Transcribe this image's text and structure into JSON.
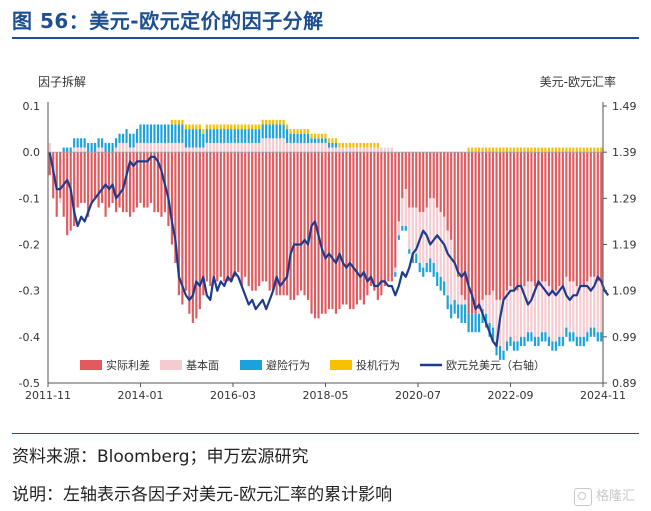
{
  "figure": {
    "title": "图 56：美元-欧元定价的因子分解",
    "source": "资料来源：Bloomberg；申万宏源研究",
    "note": "说明：左轴表示各因子对美元-欧元汇率的累计影响",
    "watermark": "格隆汇"
  },
  "chart_data": {
    "type": "bar",
    "stacked": true,
    "left_axis": {
      "label": "因子拆解",
      "ylim": [
        -0.5,
        0.1
      ],
      "ticks": [
        "0.1",
        "0.0",
        "-0.1",
        "-0.2",
        "-0.3",
        "-0.4",
        "-0.5"
      ]
    },
    "right_axis": {
      "label": "美元-欧元汇率",
      "ylim": [
        0.89,
        1.49
      ],
      "ticks": [
        "1.49",
        "1.39",
        "1.29",
        "1.19",
        "1.09",
        "0.99",
        "0.89"
      ]
    },
    "x_tick_labels": [
      "2011-11",
      "2014-01",
      "2016-03",
      "2018-05",
      "2020-07",
      "2022-09",
      "2024-11"
    ],
    "x_range": [
      "2011-11",
      "2024-12"
    ],
    "legend_position": "bottom-inside",
    "colors": {
      "rate": "#e05a5e",
      "fundamental": "#f6cbd0",
      "risk": "#1aa2dc",
      "spec": "#f6c100",
      "fx": "#1e3c8c"
    },
    "series": [
      {
        "name": "实际利差",
        "kind": "bar",
        "color": "#e05a5e",
        "values": [
          -0.05,
          -0.1,
          -0.14,
          -0.1,
          -0.14,
          -0.18,
          -0.17,
          -0.16,
          -0.12,
          -0.11,
          -0.11,
          -0.14,
          -0.11,
          -0.1,
          -0.12,
          -0.11,
          -0.14,
          -0.12,
          -0.11,
          -0.13,
          -0.12,
          -0.13,
          -0.13,
          -0.14,
          -0.13,
          -0.12,
          -0.11,
          -0.12,
          -0.12,
          -0.11,
          -0.13,
          -0.13,
          -0.14,
          -0.13,
          -0.16,
          -0.2,
          -0.24,
          -0.31,
          -0.33,
          -0.3,
          -0.35,
          -0.37,
          -0.36,
          -0.34,
          -0.31,
          -0.28,
          -0.29,
          -0.28,
          -0.28,
          -0.27,
          -0.28,
          -0.28,
          -0.28,
          -0.27,
          -0.26,
          -0.29,
          -0.27,
          -0.29,
          -0.3,
          -0.3,
          -0.29,
          -0.28,
          -0.28,
          -0.3,
          -0.3,
          -0.31,
          -0.31,
          -0.31,
          -0.31,
          -0.32,
          -0.32,
          -0.31,
          -0.3,
          -0.31,
          -0.32,
          -0.35,
          -0.36,
          -0.36,
          -0.35,
          -0.35,
          -0.34,
          -0.34,
          -0.35,
          -0.34,
          -0.33,
          -0.33,
          -0.34,
          -0.34,
          -0.33,
          -0.32,
          -0.33,
          -0.31,
          -0.29,
          -0.3,
          -0.32,
          -0.31,
          -0.29,
          -0.28,
          -0.28,
          -0.25,
          -0.15,
          -0.1,
          -0.08,
          -0.12,
          -0.12,
          -0.12,
          -0.13,
          -0.13,
          -0.12,
          -0.1,
          -0.1,
          -0.12,
          -0.13,
          -0.14,
          -0.17,
          -0.19,
          -0.24,
          -0.27,
          -0.31,
          -0.32,
          -0.35,
          -0.35,
          -0.35,
          -0.34,
          -0.32,
          -0.31,
          -0.31,
          -0.3,
          -0.32,
          -0.32,
          -0.32,
          -0.3,
          -0.29,
          -0.3,
          -0.3,
          -0.29,
          -0.29,
          -0.28,
          -0.28,
          -0.29,
          -0.29,
          -0.28,
          -0.28,
          -0.29,
          -0.3,
          -0.3,
          -0.29,
          -0.29,
          -0.27,
          -0.28,
          -0.28,
          -0.29,
          -0.29,
          -0.29,
          -0.28,
          -0.27,
          -0.27,
          -0.28,
          -0.28
        ]
      },
      {
        "name": "基本面",
        "kind": "bar",
        "color": "#f6cbd0",
        "values": [
          0.02,
          0.0,
          0.0,
          -0.01,
          0.0,
          0.0,
          0.0,
          0.01,
          0.01,
          0.01,
          0.01,
          0.0,
          0.0,
          0.0,
          0.01,
          0.01,
          0.0,
          0.0,
          0.0,
          0.01,
          0.02,
          0.02,
          0.02,
          0.01,
          0.01,
          0.02,
          0.02,
          0.02,
          0.02,
          0.02,
          0.02,
          0.02,
          0.02,
          0.02,
          0.02,
          0.02,
          0.02,
          0.02,
          0.02,
          0.01,
          0.01,
          0.01,
          0.01,
          0.01,
          0.01,
          0.02,
          0.02,
          0.02,
          0.02,
          0.02,
          0.02,
          0.02,
          0.02,
          0.02,
          0.02,
          0.02,
          0.02,
          0.02,
          0.02,
          0.02,
          0.02,
          0.03,
          0.03,
          0.03,
          0.03,
          0.03,
          0.03,
          0.03,
          0.02,
          0.02,
          0.02,
          0.02,
          0.02,
          0.02,
          0.02,
          0.02,
          0.02,
          0.02,
          0.02,
          0.02,
          0.01,
          0.01,
          0.01,
          0.01,
          0.01,
          0.01,
          0.01,
          0.01,
          0.01,
          0.01,
          0.01,
          0.01,
          0.01,
          0.01,
          0.01,
          0.01,
          0.01,
          0.01,
          0.01,
          -0.01,
          -0.03,
          -0.06,
          -0.08,
          -0.09,
          -0.1,
          -0.1,
          -0.11,
          -0.12,
          -0.12,
          -0.13,
          -0.14,
          -0.14,
          -0.14,
          -0.14,
          -0.14,
          -0.14,
          -0.08,
          -0.06,
          -0.02,
          -0.01,
          0.0,
          0.0,
          0.0,
          -0.01,
          -0.02,
          -0.04,
          -0.06,
          -0.08,
          -0.09,
          -0.1,
          -0.11,
          -0.11,
          -0.11,
          -0.11,
          -0.11,
          -0.11,
          -0.11,
          -0.11,
          -0.11,
          -0.11,
          -0.11,
          -0.11,
          -0.11,
          -0.11,
          -0.11,
          -0.11,
          -0.11,
          -0.11,
          -0.11,
          -0.11,
          -0.11,
          -0.11,
          -0.11,
          -0.11,
          -0.11,
          -0.11,
          -0.11,
          -0.11,
          -0.11
        ]
      },
      {
        "name": "避险行为",
        "kind": "bar",
        "color": "#1aa2dc",
        "values": [
          0.0,
          0.0,
          0.0,
          0.0,
          0.01,
          0.01,
          0.01,
          0.02,
          0.02,
          0.02,
          0.02,
          0.02,
          0.02,
          0.02,
          0.02,
          0.02,
          0.02,
          0.02,
          0.02,
          0.02,
          0.02,
          0.02,
          0.03,
          0.03,
          0.03,
          0.03,
          0.04,
          0.04,
          0.04,
          0.04,
          0.04,
          0.04,
          0.04,
          0.04,
          0.04,
          0.04,
          0.04,
          0.04,
          0.04,
          0.04,
          0.04,
          0.04,
          0.04,
          0.04,
          0.03,
          0.03,
          0.03,
          0.03,
          0.03,
          0.03,
          0.03,
          0.03,
          0.03,
          0.03,
          0.03,
          0.03,
          0.03,
          0.03,
          0.03,
          0.03,
          0.03,
          0.03,
          0.03,
          0.03,
          0.03,
          0.03,
          0.03,
          0.03,
          0.03,
          0.02,
          0.02,
          0.02,
          0.02,
          0.02,
          0.02,
          0.01,
          0.01,
          0.01,
          0.01,
          0.01,
          0.01,
          0.01,
          0.01,
          0.0,
          0.0,
          0.0,
          0.0,
          0.0,
          0.0,
          0.0,
          0.0,
          0.0,
          0.0,
          0.0,
          0.0,
          0.0,
          0.0,
          0.0,
          0.0,
          -0.01,
          -0.01,
          -0.01,
          -0.01,
          -0.01,
          -0.02,
          -0.02,
          -0.02,
          -0.02,
          -0.02,
          -0.03,
          -0.03,
          -0.03,
          -0.03,
          -0.03,
          -0.03,
          -0.03,
          -0.03,
          -0.03,
          -0.04,
          -0.04,
          -0.04,
          -0.04,
          -0.04,
          -0.04,
          -0.03,
          -0.03,
          -0.03,
          -0.03,
          -0.03,
          -0.03,
          -0.02,
          -0.02,
          -0.02,
          -0.02,
          -0.02,
          -0.02,
          -0.02,
          -0.02,
          -0.02,
          -0.02,
          -0.02,
          -0.02,
          -0.02,
          -0.02,
          -0.02,
          -0.02,
          -0.02,
          -0.02,
          -0.02,
          -0.02,
          -0.02,
          -0.02,
          -0.02,
          -0.02,
          -0.02,
          -0.02,
          -0.02,
          -0.02,
          -0.02
        ]
      },
      {
        "name": "投机行为",
        "kind": "bar",
        "color": "#f6c100",
        "values": [
          0.0,
          0.0,
          0.0,
          0.0,
          0.0,
          0.0,
          0.0,
          0.0,
          0.0,
          0.0,
          0.0,
          0.0,
          0.0,
          0.0,
          0.0,
          0.0,
          0.0,
          0.0,
          0.0,
          0.0,
          0.0,
          0.0,
          0.0,
          0.0,
          0.0,
          0.0,
          0.0,
          0.0,
          0.0,
          0.0,
          0.0,
          0.0,
          0.0,
          0.0,
          0.0,
          0.01,
          0.01,
          0.01,
          0.01,
          0.01,
          0.01,
          0.01,
          0.01,
          0.01,
          0.01,
          0.01,
          0.01,
          0.01,
          0.01,
          0.01,
          0.01,
          0.01,
          0.01,
          0.01,
          0.01,
          0.01,
          0.01,
          0.01,
          0.01,
          0.01,
          0.01,
          0.01,
          0.01,
          0.01,
          0.01,
          0.01,
          0.01,
          0.01,
          0.01,
          0.01,
          0.01,
          0.01,
          0.01,
          0.01,
          0.01,
          0.01,
          0.01,
          0.01,
          0.01,
          0.01,
          0.01,
          0.01,
          0.01,
          0.01,
          0.01,
          0.01,
          0.01,
          0.01,
          0.01,
          0.01,
          0.01,
          0.01,
          0.01,
          0.01,
          0.01,
          0.0,
          0.0,
          0.0,
          0.0,
          0.0,
          0.0,
          0.0,
          0.0,
          0.0,
          0.0,
          0.0,
          0.0,
          0.0,
          0.0,
          0.0,
          0.0,
          0.0,
          0.0,
          0.0,
          0.0,
          0.0,
          0.0,
          0.0,
          0.0,
          0.0,
          0.01,
          0.01,
          0.01,
          0.01,
          0.01,
          0.01,
          0.01,
          0.01,
          0.01,
          0.01,
          0.01,
          0.01,
          0.01,
          0.01,
          0.01,
          0.01,
          0.01,
          0.01,
          0.01,
          0.01,
          0.01,
          0.01,
          0.01,
          0.01,
          0.01,
          0.01,
          0.01,
          0.01,
          0.01,
          0.01,
          0.01,
          0.01,
          0.01,
          0.01,
          0.01,
          0.01,
          0.01,
          0.01,
          0.01
        ]
      },
      {
        "name": "欧元兑美元（右轴）",
        "kind": "line",
        "axis": "right",
        "color": "#1e3c8c",
        "values": [
          1.39,
          1.35,
          1.31,
          1.31,
          1.32,
          1.33,
          1.31,
          1.26,
          1.23,
          1.25,
          1.24,
          1.26,
          1.28,
          1.29,
          1.3,
          1.31,
          1.32,
          1.31,
          1.32,
          1.29,
          1.3,
          1.31,
          1.34,
          1.37,
          1.36,
          1.37,
          1.37,
          1.37,
          1.37,
          1.38,
          1.38,
          1.37,
          1.35,
          1.32,
          1.29,
          1.24,
          1.2,
          1.12,
          1.1,
          1.08,
          1.07,
          1.08,
          1.11,
          1.1,
          1.12,
          1.08,
          1.07,
          1.12,
          1.09,
          1.11,
          1.1,
          1.12,
          1.11,
          1.13,
          1.12,
          1.1,
          1.08,
          1.06,
          1.07,
          1.05,
          1.06,
          1.07,
          1.05,
          1.07,
          1.09,
          1.12,
          1.1,
          1.11,
          1.12,
          1.17,
          1.19,
          1.19,
          1.19,
          1.2,
          1.19,
          1.23,
          1.24,
          1.21,
          1.18,
          1.16,
          1.17,
          1.16,
          1.15,
          1.17,
          1.15,
          1.14,
          1.15,
          1.14,
          1.13,
          1.12,
          1.13,
          1.11,
          1.12,
          1.1,
          1.1,
          1.11,
          1.11,
          1.1,
          1.1,
          1.08,
          1.1,
          1.13,
          1.12,
          1.14,
          1.17,
          1.18,
          1.2,
          1.22,
          1.21,
          1.19,
          1.2,
          1.21,
          1.2,
          1.19,
          1.17,
          1.16,
          1.15,
          1.13,
          1.12,
          1.13,
          1.1,
          1.08,
          1.05,
          1.06,
          1.04,
          1.02,
          1.0,
          0.98,
          0.97,
          1.03,
          1.07,
          1.08,
          1.09,
          1.09,
          1.1,
          1.1,
          1.08,
          1.06,
          1.07,
          1.09,
          1.11,
          1.1,
          1.09,
          1.08,
          1.09,
          1.08,
          1.09,
          1.1,
          1.08,
          1.07,
          1.08,
          1.08,
          1.1,
          1.1,
          1.1,
          1.09,
          1.1,
          1.12,
          1.11,
          1.09,
          1.08
        ]
      }
    ],
    "legend": [
      "实际利差",
      "基本面",
      "避险行为",
      "投机行为",
      "欧元兑美元（右轴）"
    ]
  }
}
